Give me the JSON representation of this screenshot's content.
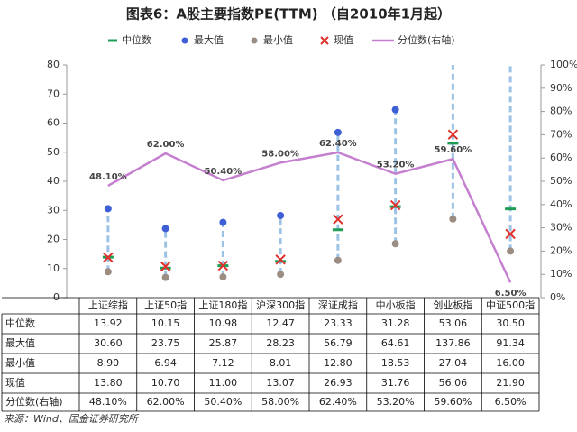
{
  "chart_data": {
    "type": "range",
    "title": "图表6：A股主要指数PE(TTM) （自2010年1月起）",
    "source": "来源：Wind、国金证券研究所",
    "categories": [
      "上证综指",
      "上证50指",
      "上证180指",
      "沪深300指",
      "深证成指",
      "中小板指",
      "创业板指",
      "中证500指"
    ],
    "ylim": [
      0,
      80
    ],
    "yticks": [
      0,
      10,
      20,
      30,
      40,
      50,
      60,
      70,
      80
    ],
    "y2lim": [
      0,
      100
    ],
    "y2ticks": [
      {
        "value": 0,
        "label": "0%"
      },
      {
        "value": 10,
        "label": "10%"
      },
      {
        "value": 20,
        "label": "20%"
      },
      {
        "value": 30,
        "label": "30%"
      },
      {
        "value": 40,
        "label": "40%"
      },
      {
        "value": 50,
        "label": "50%"
      },
      {
        "value": 60,
        "label": "60%"
      },
      {
        "value": 70,
        "label": "70%"
      },
      {
        "value": 80,
        "label": "80%"
      },
      {
        "value": 90,
        "label": "90%"
      },
      {
        "value": 100,
        "label": "100%"
      }
    ],
    "series": [
      {
        "name": "中位数",
        "color": "#1e9e55",
        "marker": "dash",
        "values": [
          13.92,
          10.15,
          10.98,
          12.47,
          23.33,
          31.28,
          53.06,
          30.5
        ],
        "value_labels": [
          "13.92",
          "10.15",
          "10.98",
          "12.47",
          "23.33",
          "31.28",
          "53.06",
          "30.50"
        ]
      },
      {
        "name": "最大值",
        "color": "#3f5fd6",
        "marker": "dot",
        "values": [
          30.6,
          23.75,
          25.87,
          28.23,
          56.79,
          64.61,
          137.86,
          91.34
        ],
        "value_labels": [
          "30.60",
          "23.75",
          "25.87",
          "28.23",
          "56.79",
          "64.61",
          "137.86",
          "91.34"
        ]
      },
      {
        "name": "最小值",
        "color": "#9c8d83",
        "marker": "dot",
        "values": [
          8.9,
          6.94,
          7.12,
          8.01,
          12.8,
          18.53,
          27.04,
          16.0
        ],
        "value_labels": [
          "8.90",
          "6.94",
          "7.12",
          "8.01",
          "12.80",
          "18.53",
          "27.04",
          "16.00"
        ]
      },
      {
        "name": "现值",
        "color": "#e0312d",
        "marker": "cross",
        "values": [
          13.8,
          10.7,
          11.0,
          13.07,
          26.93,
          31.76,
          56.06,
          21.9
        ],
        "value_labels": [
          "13.80",
          "10.70",
          "11.00",
          "13.07",
          "26.93",
          "31.76",
          "56.06",
          "21.90"
        ]
      },
      {
        "name": "分位数(右轴)",
        "color": "#c57fcf",
        "marker": "line",
        "axis": "y2",
        "values": [
          48.1,
          62.0,
          50.4,
          58.0,
          62.4,
          53.2,
          59.6,
          6.5
        ],
        "value_labels": [
          "48.10%",
          "62.00%",
          "50.40%",
          "58.00%",
          "62.40%",
          "53.20%",
          "59.60%",
          "6.50%"
        ]
      }
    ],
    "range_color": "#9cc3e6"
  }
}
